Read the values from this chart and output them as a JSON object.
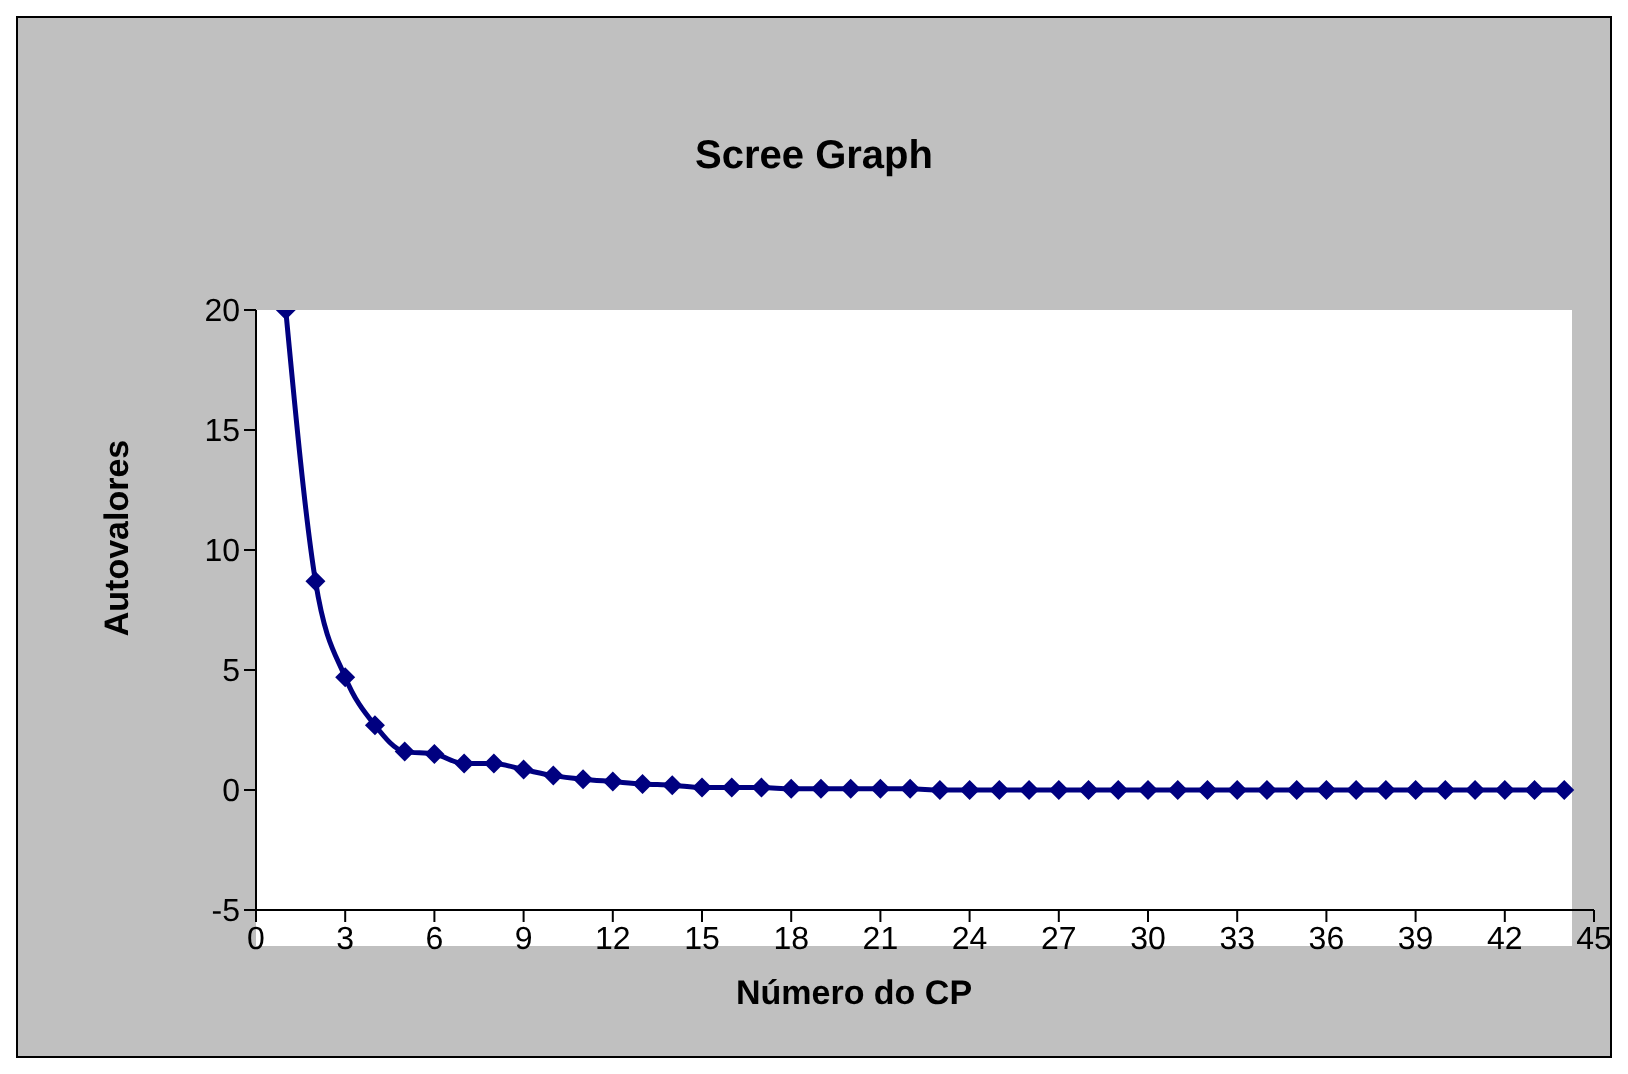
{
  "chart_data": {
    "type": "line",
    "title": "Scree Graph",
    "xlabel": "Número do CP",
    "ylabel": "Autovalores",
    "x": [
      1,
      2,
      3,
      4,
      5,
      6,
      7,
      8,
      9,
      10,
      11,
      12,
      13,
      14,
      15,
      16,
      17,
      18,
      19,
      20,
      21,
      22,
      23,
      24,
      25,
      26,
      27,
      28,
      29,
      30,
      31,
      32,
      33,
      34,
      35,
      36,
      37,
      38,
      39,
      40,
      41,
      42,
      43,
      44
    ],
    "series": [
      {
        "color": "#000080",
        "values": [
          20,
          8.7,
          4.7,
          2.7,
          1.6,
          1.5,
          1.1,
          1.1,
          0.85,
          0.6,
          0.45,
          0.35,
          0.25,
          0.2,
          0.1,
          0.1,
          0.1,
          0.05,
          0.05,
          0.05,
          0.05,
          0.05,
          0,
          0,
          0,
          0,
          0,
          0,
          0,
          0,
          0,
          0,
          0,
          0,
          0,
          0,
          0,
          0,
          0,
          0,
          0,
          0,
          0,
          0
        ]
      }
    ],
    "xlim": [
      0,
      45
    ],
    "xticks": [
      0,
      3,
      6,
      9,
      12,
      15,
      18,
      21,
      24,
      27,
      30,
      33,
      36,
      39,
      42,
      45
    ],
    "ylim": [
      -5,
      20
    ],
    "yticks": [
      -5,
      0,
      5,
      10,
      15,
      20
    ],
    "grid": false,
    "legend": false,
    "marker": "diamond",
    "line_style": "solid"
  }
}
